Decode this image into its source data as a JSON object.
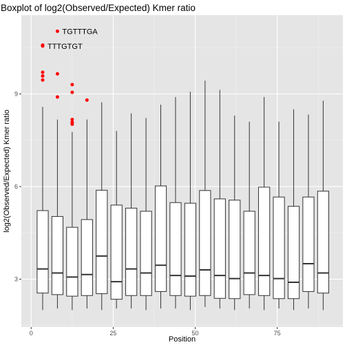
{
  "chart_data": {
    "type": "boxplot",
    "title": "Boxplot of log2(Observed/Expected) Kmer ratio",
    "xlabel": "Position",
    "ylabel": "log2(Observed/Expected) Kmer ratio",
    "xlim": [
      -3,
      95
    ],
    "ylim": [
      1.45,
      11.55
    ],
    "x_ticks": [
      0,
      25,
      50,
      75
    ],
    "x_tick_labels": [
      "0",
      "25",
      "50",
      "75"
    ],
    "y_ticks": [
      3,
      6,
      9
    ],
    "y_tick_labels": [
      "3",
      "6",
      "9"
    ],
    "grid": true,
    "background": "#e5e5e5",
    "outlier_color": "#ff0000",
    "box_width": 3.4,
    "boxes": [
      {
        "x": 3.5,
        "min": 2.0,
        "q1": 2.55,
        "median": 3.33,
        "q3": 5.22,
        "max": 8.58
      },
      {
        "x": 8.0,
        "min": 2.05,
        "q1": 2.5,
        "median": 3.2,
        "q3": 5.03,
        "max": 8.17
      },
      {
        "x": 12.5,
        "min": 2.0,
        "q1": 2.45,
        "median": 3.07,
        "q3": 4.68,
        "max": 7.77
      },
      {
        "x": 17.0,
        "min": 2.05,
        "q1": 2.47,
        "median": 3.15,
        "q3": 4.93,
        "max": 8.17
      },
      {
        "x": 21.5,
        "min": 2.0,
        "q1": 2.53,
        "median": 3.75,
        "q3": 5.88,
        "max": 8.73
      },
      {
        "x": 26.0,
        "min": 2.05,
        "q1": 2.35,
        "median": 2.92,
        "q3": 5.4,
        "max": 7.8
      },
      {
        "x": 30.5,
        "min": 2.05,
        "q1": 2.47,
        "median": 3.33,
        "q3": 5.3,
        "max": 8.37
      },
      {
        "x": 35.0,
        "min": 2.0,
        "q1": 2.47,
        "median": 3.2,
        "q3": 5.2,
        "max": 8.22
      },
      {
        "x": 39.5,
        "min": 2.05,
        "q1": 2.6,
        "median": 3.45,
        "q3": 6.02,
        "max": 8.65
      },
      {
        "x": 44.0,
        "min": 2.05,
        "q1": 2.47,
        "median": 3.12,
        "q3": 5.48,
        "max": 8.9
      },
      {
        "x": 48.5,
        "min": 2.0,
        "q1": 2.45,
        "median": 3.1,
        "q3": 5.46,
        "max": 9.07
      },
      {
        "x": 53.0,
        "min": 2.1,
        "q1": 2.47,
        "median": 3.3,
        "q3": 5.87,
        "max": 9.43
      },
      {
        "x": 57.5,
        "min": 2.05,
        "q1": 2.38,
        "median": 3.12,
        "q3": 5.6,
        "max": 9.13
      },
      {
        "x": 62.0,
        "min": 2.0,
        "q1": 2.37,
        "median": 3.02,
        "q3": 5.56,
        "max": 8.3
      },
      {
        "x": 66.5,
        "min": 2.05,
        "q1": 2.5,
        "median": 3.2,
        "q3": 5.2,
        "max": 8.1
      },
      {
        "x": 71.0,
        "min": 2.0,
        "q1": 2.47,
        "median": 3.12,
        "q3": 5.98,
        "max": 8.9
      },
      {
        "x": 75.5,
        "min": 2.05,
        "q1": 2.37,
        "median": 3.02,
        "q3": 5.66,
        "max": 8.1
      },
      {
        "x": 80.0,
        "min": 2.0,
        "q1": 2.37,
        "median": 2.9,
        "q3": 5.36,
        "max": 8.5
      },
      {
        "x": 84.5,
        "min": 2.05,
        "q1": 2.6,
        "median": 3.5,
        "q3": 5.66,
        "max": 8.33
      },
      {
        "x": 89.0,
        "min": 2.0,
        "q1": 2.55,
        "median": 3.2,
        "q3": 5.85,
        "max": 8.78
      }
    ],
    "outliers": [
      {
        "x": 3.5,
        "y": 10.58
      },
      {
        "x": 3.5,
        "y": 10.55
      },
      {
        "x": 3.5,
        "y": 9.7
      },
      {
        "x": 3.5,
        "y": 9.58
      },
      {
        "x": 3.5,
        "y": 9.45
      },
      {
        "x": 8.0,
        "y": 11.03
      },
      {
        "x": 8.0,
        "y": 9.65
      },
      {
        "x": 8.0,
        "y": 8.9
      },
      {
        "x": 12.5,
        "y": 9.3
      },
      {
        "x": 12.5,
        "y": 9.05
      },
      {
        "x": 12.5,
        "y": 8.17
      },
      {
        "x": 12.5,
        "y": 8.08
      },
      {
        "x": 12.5,
        "y": 8.02
      },
      {
        "x": 17.0,
        "y": 8.8
      }
    ],
    "annotations": [
      {
        "text": "TGTTTGA",
        "x": 8.0,
        "y": 11.03
      },
      {
        "text": "TTTGTGT",
        "x": 3.5,
        "y": 10.55
      }
    ]
  }
}
